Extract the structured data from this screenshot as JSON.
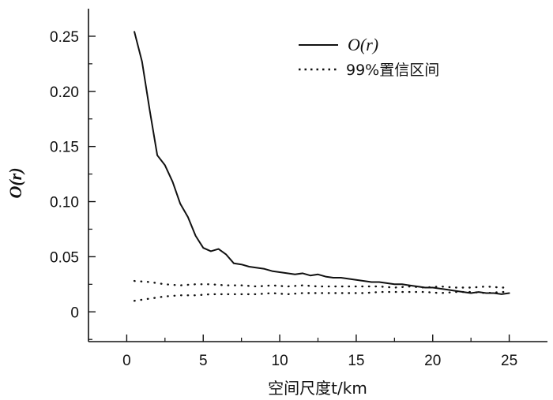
{
  "chart_data": {
    "type": "line",
    "title": "",
    "xlabel": "空间尺度t/km",
    "ylabel": "O(r)",
    "xlim": [
      -2.5,
      27.5
    ],
    "ylim": [
      -0.027,
      0.275
    ],
    "x_ticks": [
      0,
      5,
      10,
      15,
      20,
      25
    ],
    "x_tick_labels": [
      "0",
      "5",
      "10",
      "15",
      "20",
      "25"
    ],
    "y_ticks": [
      0,
      0.05,
      0.1,
      0.15,
      0.2,
      0.25
    ],
    "y_tick_labels": [
      "0",
      "0.05",
      "0.10",
      "0.15",
      "0.20",
      "0.25"
    ],
    "grid": false,
    "legend_position": "top-right",
    "series": [
      {
        "name": "O(r)",
        "style": "solid",
        "color": "#111111",
        "x": [
          0.5,
          1,
          1.5,
          2,
          2.5,
          3,
          3.5,
          4,
          4.5,
          5,
          5.5,
          6,
          6.5,
          7,
          7.5,
          8,
          8.5,
          9,
          9.5,
          10,
          10.5,
          11,
          11.5,
          12,
          12.5,
          13,
          13.5,
          14,
          14.5,
          15,
          15.5,
          16,
          16.5,
          17,
          17.5,
          18,
          18.5,
          19,
          19.5,
          20,
          20.5,
          21,
          21.5,
          22,
          22.5,
          23,
          23.5,
          24,
          24.5,
          25
        ],
        "values": [
          0.254,
          0.227,
          0.183,
          0.142,
          0.133,
          0.118,
          0.098,
          0.086,
          0.069,
          0.058,
          0.055,
          0.057,
          0.052,
          0.044,
          0.043,
          0.041,
          0.04,
          0.039,
          0.037,
          0.036,
          0.035,
          0.034,
          0.035,
          0.033,
          0.034,
          0.032,
          0.031,
          0.031,
          0.03,
          0.029,
          0.028,
          0.027,
          0.027,
          0.026,
          0.025,
          0.025,
          0.024,
          0.023,
          0.022,
          0.022,
          0.021,
          0.02,
          0.019,
          0.018,
          0.017,
          0.018,
          0.017,
          0.017,
          0.016,
          0.017
        ]
      },
      {
        "name": "99%置信区间",
        "style": "dotted",
        "color": "#111111",
        "x": [
          0.5,
          1.5,
          2.5,
          3.5,
          4.5,
          5.5,
          6.5,
          7.5,
          8.5,
          9.5,
          10.5,
          11.5,
          12.5,
          13.5,
          14.5,
          15.5,
          16.5,
          17.5,
          18.5,
          19.5,
          20.5,
          21.5,
          22.5,
          23.5,
          24.5,
          25
        ],
        "values": [
          0.028,
          0.027,
          0.025,
          0.024,
          0.025,
          0.025,
          0.024,
          0.024,
          0.023,
          0.024,
          0.023,
          0.024,
          0.023,
          0.023,
          0.023,
          0.023,
          0.023,
          0.022,
          0.023,
          0.022,
          0.023,
          0.022,
          0.022,
          0.023,
          0.022,
          0.022
        ]
      },
      {
        "name": "99%置信区间",
        "style": "dotted",
        "color": "#111111",
        "x": [
          0.5,
          1.5,
          2.5,
          3.5,
          4.5,
          5.5,
          6.5,
          7.5,
          8.5,
          9.5,
          10.5,
          11.5,
          12.5,
          13.5,
          14.5,
          15.5,
          16.5,
          17.5,
          18.5,
          19.5,
          20.5,
          21.5,
          22.5,
          23.5,
          24.5,
          25
        ],
        "values": [
          0.01,
          0.012,
          0.014,
          0.015,
          0.015,
          0.016,
          0.016,
          0.016,
          0.016,
          0.017,
          0.016,
          0.017,
          0.017,
          0.017,
          0.017,
          0.017,
          0.018,
          0.018,
          0.018,
          0.018,
          0.017,
          0.018,
          0.018,
          0.017,
          0.018,
          0.018
        ]
      }
    ],
    "legend": [
      {
        "label": "O(r)",
        "style": "solid"
      },
      {
        "label": "99%置信区间",
        "style": "dotted"
      }
    ]
  }
}
